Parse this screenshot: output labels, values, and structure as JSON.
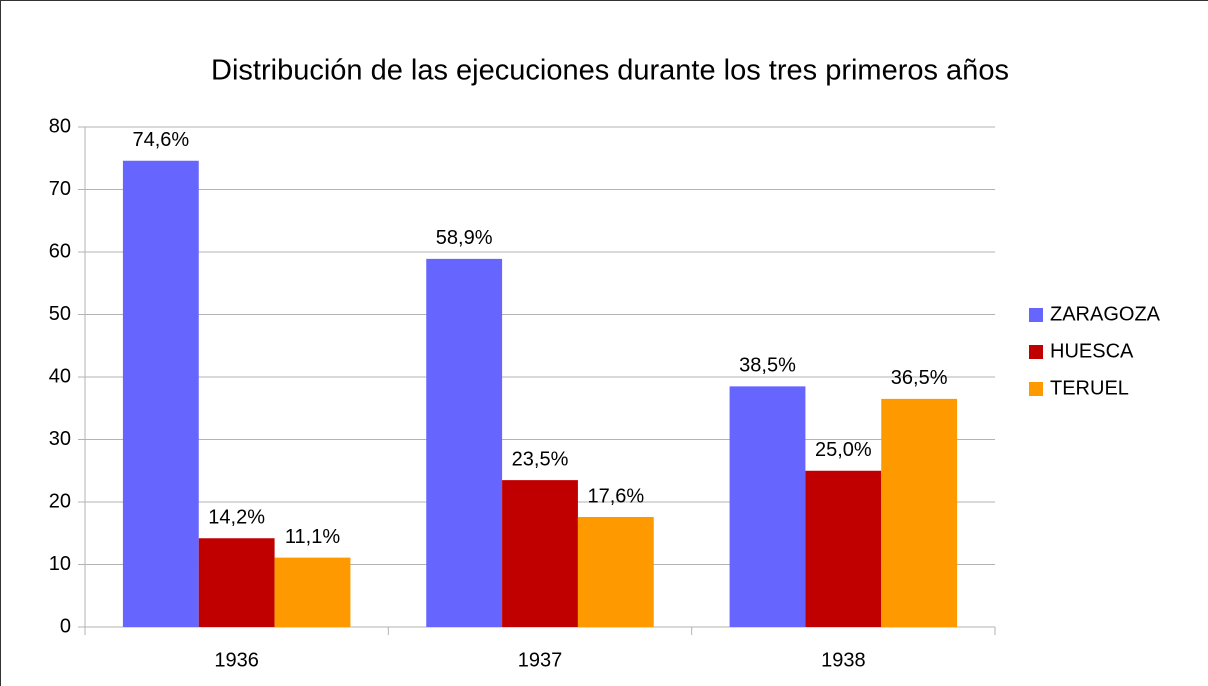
{
  "chart_data": {
    "type": "bar",
    "title": "Distribución de las ejecuciones durante los tres primeros años",
    "categories": [
      "1936",
      "1937",
      "1938"
    ],
    "series": [
      {
        "name": "ZARAGOZA",
        "color": "#6666ff",
        "values": [
          74.6,
          58.9,
          38.5
        ],
        "value_labels": [
          "74,6%",
          "58,9%",
          "38,5%"
        ]
      },
      {
        "name": "HUESCA",
        "color": "#c00000",
        "values": [
          14.2,
          23.5,
          25.0
        ],
        "value_labels": [
          "14,2%",
          "23,5%",
          "25,0%"
        ]
      },
      {
        "name": "TERUEL",
        "color": "#ff9900",
        "values": [
          11.1,
          17.6,
          36.5
        ],
        "value_labels": [
          "11,1%",
          "17,6%",
          "36,5%"
        ]
      }
    ],
    "ylim": [
      0,
      80
    ],
    "yticks": [
      0,
      10,
      20,
      30,
      40,
      50,
      60,
      70,
      80
    ],
    "grid": true,
    "legend": "right"
  }
}
